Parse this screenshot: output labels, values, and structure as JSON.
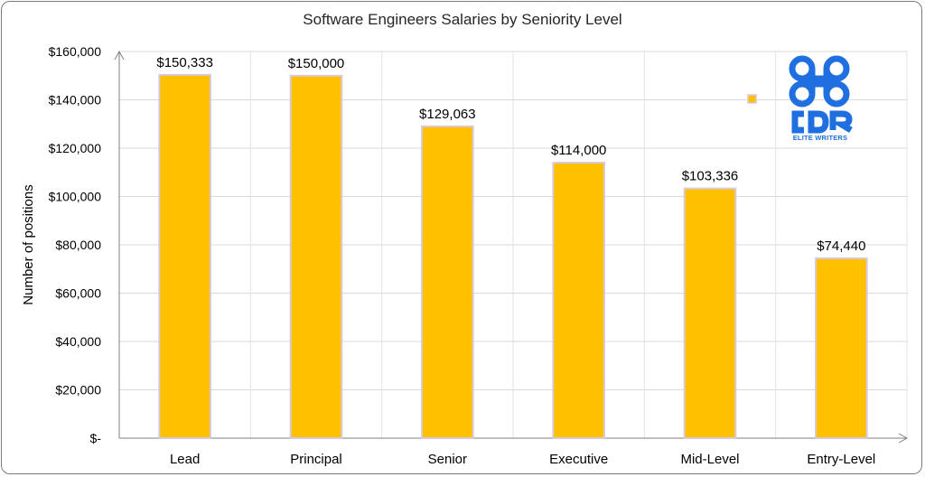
{
  "chart_data": {
    "type": "bar",
    "title": "Software Engineers Salaries by Seniority Level",
    "ylabel": "Number of positions",
    "xlabel": "",
    "categories": [
      "Lead",
      "Principal",
      "Senior",
      "Executive",
      "Mid-Level",
      "Entry-Level"
    ],
    "values": [
      150333,
      150000,
      129063,
      114000,
      103336,
      74440
    ],
    "data_labels": [
      "$150,333",
      "$150,000",
      "$129,063",
      "$114,000",
      "$103,336",
      "$74,440"
    ],
    "ylim": [
      0,
      160000
    ],
    "yticks": [
      0,
      20000,
      40000,
      60000,
      80000,
      100000,
      120000,
      140000,
      160000
    ],
    "ytick_labels": [
      "$-",
      "$20,000",
      "$40,000",
      "$60,000",
      "$80,000",
      "$100,000",
      "$120,000",
      "$140,000",
      "$160,000"
    ],
    "grid": true,
    "legend": "right",
    "bar_color": "#FFC000",
    "bar_edge_color": "#D9C9DC"
  },
  "logo": {
    "text": "CDR",
    "subtitle": "ELITE WRITERS",
    "color": "#1F6FE0"
  }
}
